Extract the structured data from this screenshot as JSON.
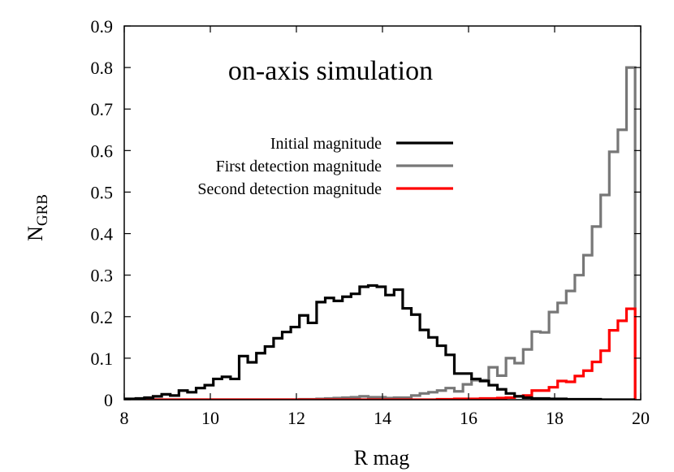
{
  "chart_data": {
    "type": "histogram-step",
    "title": "on-axis simulation",
    "xlabel": "R mag",
    "ylabel_main": "N",
    "ylabel_sub": "GRB",
    "xlim": [
      8,
      20
    ],
    "ylim": [
      0,
      0.9
    ],
    "xticks": [
      "8",
      "10",
      "12",
      "14",
      "16",
      "18",
      "20"
    ],
    "yticks": [
      "0",
      "0.1",
      "0.2",
      "0.3",
      "0.4",
      "0.5",
      "0.6",
      "0.7",
      "0.8",
      "0.9"
    ],
    "grid": false,
    "legend_placement": "upper-middle",
    "bin_first_edge": 7.87,
    "bin_width": 0.2,
    "series": [
      {
        "name": "Initial magnitude",
        "color": "#000000",
        "values": [
          0.002,
          0.002,
          0.003,
          0.005,
          0.008,
          0.013,
          0.01,
          0.022,
          0.018,
          0.028,
          0.035,
          0.05,
          0.055,
          0.05,
          0.105,
          0.09,
          0.112,
          0.128,
          0.148,
          0.163,
          0.175,
          0.203,
          0.185,
          0.235,
          0.245,
          0.238,
          0.248,
          0.255,
          0.272,
          0.275,
          0.272,
          0.252,
          0.265,
          0.22,
          0.205,
          0.168,
          0.15,
          0.13,
          0.108,
          0.063,
          0.063,
          0.05,
          0.045,
          0.035,
          0.025,
          0.015,
          0.008,
          0.005,
          0.003,
          0.003,
          0.002,
          0.002,
          0.001,
          0.001,
          0.001,
          0.001,
          0,
          0,
          0,
          0
        ]
      },
      {
        "name": "First detection magnitude",
        "color": "#777777",
        "values": [
          0,
          0,
          0,
          0,
          0,
          0,
          0,
          0,
          0,
          0,
          0,
          0,
          0,
          0,
          0,
          0,
          0,
          0,
          0,
          0,
          0,
          0.001,
          0.001,
          0.002,
          0.003,
          0.004,
          0.005,
          0.006,
          0.008,
          0.006,
          0.006,
          0.004,
          0.005,
          0.005,
          0.01,
          0.015,
          0.018,
          0.022,
          0.028,
          0.02,
          0.037,
          0.047,
          0.047,
          0.078,
          0.058,
          0.1,
          0.088,
          0.121,
          0.164,
          0.162,
          0.211,
          0.233,
          0.262,
          0.3,
          0.348,
          0.417,
          0.493,
          0.597,
          0.65,
          0.8
        ]
      },
      {
        "name": "Second detection magnitude",
        "color": "#ff0000",
        "values": [
          0,
          0,
          0,
          0,
          0,
          0,
          0,
          0,
          0,
          0,
          0,
          0,
          0,
          0,
          0,
          0,
          0,
          0,
          0,
          0,
          0,
          0,
          0,
          0,
          0,
          0,
          0,
          0,
          0,
          0,
          0,
          0,
          0,
          0,
          0,
          0,
          0,
          0.001,
          0.001,
          0.002,
          0.002,
          0.002,
          0.003,
          0.003,
          0.004,
          0.005,
          0.008,
          0.01,
          0.022,
          0.022,
          0.03,
          0.045,
          0.043,
          0.057,
          0.07,
          0.091,
          0.118,
          0.167,
          0.19,
          0.219
        ]
      }
    ]
  }
}
